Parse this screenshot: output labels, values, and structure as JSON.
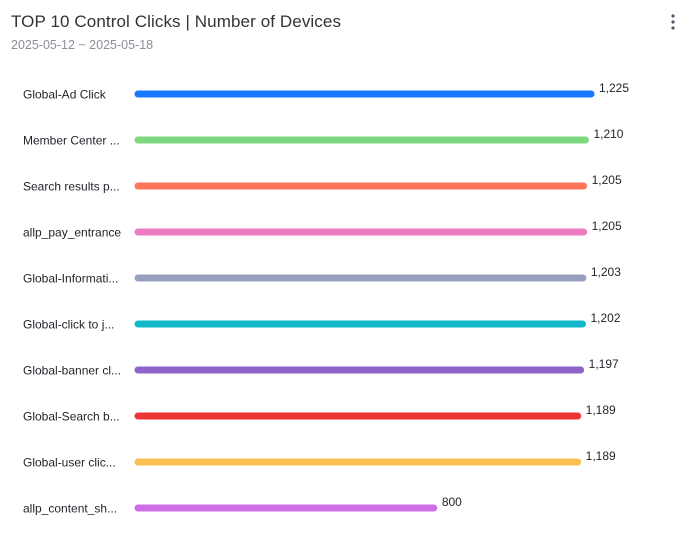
{
  "header": {
    "title": "TOP 10 Control Clicks | Number of Devices",
    "date_range": "2025-05-12 ~ 2025-05-18",
    "more_icon": "more-vertical-icon"
  },
  "chart_data": {
    "type": "bar",
    "orientation": "horizontal",
    "categories": [
      "Global-Ad Click",
      "Member Center ...",
      "Search results p...",
      "allp_pay_entrance",
      "Global-Informati...",
      "Global-click to j...",
      "Global-banner cl...",
      "Global-Search b...",
      "Global-user clic...",
      "allp_content_sh..."
    ],
    "values": [
      1225,
      1210,
      1205,
      1205,
      1203,
      1202,
      1197,
      1189,
      1189,
      800
    ],
    "value_labels": [
      "1,225",
      "1,210",
      "1,205",
      "1,205",
      "1,203",
      "1,202",
      "1,197",
      "1,189",
      "1,189",
      "800"
    ],
    "colors": [
      "#1677ff",
      "#7dd87f",
      "#ff7559",
      "#ee7cc5",
      "#98a0c0",
      "#12b8c9",
      "#8d65c9",
      "#eb3436",
      "#fbbf52",
      "#d06ee8"
    ],
    "xlim": [
      0,
      1225
    ],
    "grid": false
  }
}
